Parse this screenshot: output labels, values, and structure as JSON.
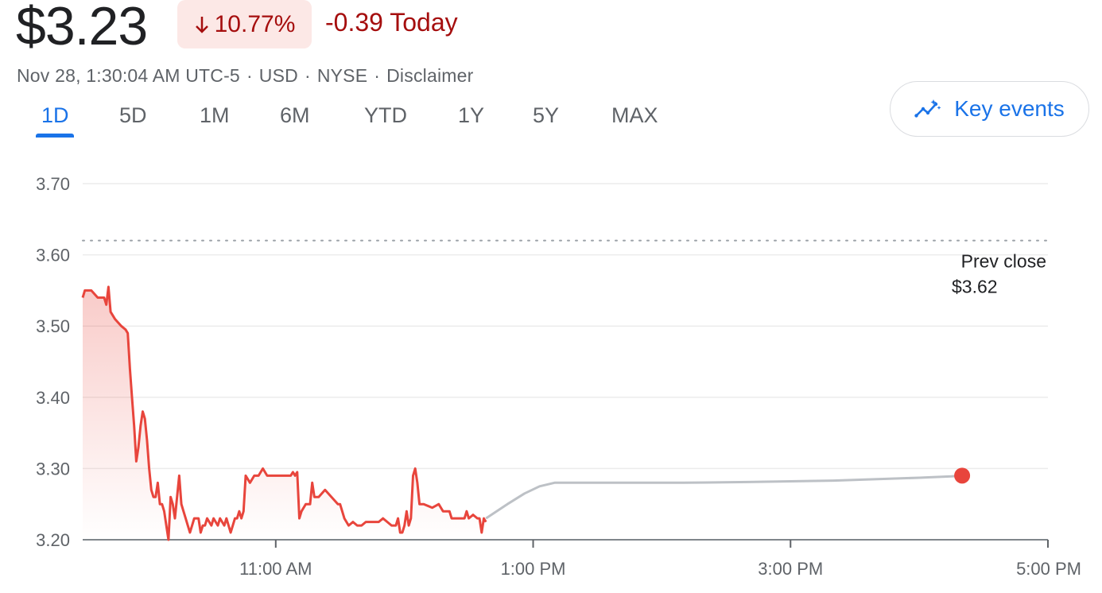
{
  "header": {
    "price": "$3.23",
    "change_percent": "10.77%",
    "change_today": "-0.39 Today",
    "meta": {
      "timestamp": "Nov 28, 1:30:04 AM UTC-5",
      "currency": "USD",
      "exchange": "NYSE",
      "disclaimer": "Disclaimer",
      "separator": "·"
    },
    "arrow_icon": "arrow-down-icon"
  },
  "tabs": [
    {
      "label": "1D",
      "active": true
    },
    {
      "label": "5D",
      "active": false
    },
    {
      "label": "1M",
      "active": false
    },
    {
      "label": "6M",
      "active": false
    },
    {
      "label": "YTD",
      "active": false
    },
    {
      "label": "1Y",
      "active": false
    },
    {
      "label": "5Y",
      "active": false
    },
    {
      "label": "MAX",
      "active": false
    }
  ],
  "key_events": {
    "label": "Key events",
    "icon": "insights-sparkle-icon"
  },
  "colors": {
    "down": "#a50e0e",
    "down_bg": "#fce8e6",
    "line": "#e8453c",
    "after_hours": "#bdc1c6",
    "accent": "#1a73e8",
    "grid": "#ececec",
    "prev_close_line": "#9aa0a6"
  },
  "chart_data": {
    "type": "line",
    "y_ticks": [
      "3.70",
      "3.60",
      "3.50",
      "3.40",
      "3.30",
      "3.20"
    ],
    "ylim": [
      3.2,
      3.7
    ],
    "x_ticks": [
      {
        "label": "11:00 AM",
        "minute": 660
      },
      {
        "label": "1:00 PM",
        "minute": 780
      },
      {
        "label": "3:00 PM",
        "minute": 900
      },
      {
        "label": "5:00 PM",
        "minute": 1020
      }
    ],
    "xlim_minutes": [
      570,
      1020
    ],
    "prev_close": {
      "label": "Prev close",
      "value_label": "$3.62",
      "value": 3.62
    },
    "series": [
      {
        "segment": "regular",
        "points": [
          [
            570,
            3.54
          ],
          [
            571,
            3.55
          ],
          [
            574,
            3.55
          ],
          [
            577,
            3.54
          ],
          [
            580,
            3.54
          ],
          [
            581,
            3.53
          ],
          [
            582,
            3.555
          ],
          [
            583,
            3.52
          ],
          [
            585,
            3.51
          ],
          [
            588,
            3.5
          ],
          [
            590,
            3.495
          ],
          [
            591,
            3.49
          ],
          [
            592,
            3.44
          ],
          [
            593,
            3.4
          ],
          [
            594,
            3.36
          ],
          [
            595,
            3.31
          ],
          [
            596,
            3.33
          ],
          [
            597,
            3.36
          ],
          [
            598,
            3.38
          ],
          [
            599,
            3.37
          ],
          [
            600,
            3.34
          ],
          [
            601,
            3.3
          ],
          [
            602,
            3.27
          ],
          [
            603,
            3.26
          ],
          [
            604,
            3.26
          ],
          [
            605,
            3.28
          ],
          [
            606,
            3.25
          ],
          [
            607,
            3.25
          ],
          [
            608,
            3.24
          ],
          [
            609,
            3.22
          ],
          [
            610,
            3.2
          ],
          [
            611,
            3.26
          ],
          [
            612,
            3.25
          ],
          [
            613,
            3.23
          ],
          [
            614,
            3.26
          ],
          [
            615,
            3.29
          ],
          [
            616,
            3.25
          ],
          [
            617,
            3.24
          ],
          [
            618,
            3.23
          ],
          [
            619,
            3.22
          ],
          [
            620,
            3.21
          ],
          [
            621,
            3.22
          ],
          [
            622,
            3.23
          ],
          [
            624,
            3.23
          ],
          [
            625,
            3.21
          ],
          [
            626,
            3.22
          ],
          [
            627,
            3.22
          ],
          [
            628,
            3.23
          ],
          [
            630,
            3.22
          ],
          [
            631,
            3.23
          ],
          [
            633,
            3.22
          ],
          [
            634,
            3.23
          ],
          [
            636,
            3.22
          ],
          [
            637,
            3.23
          ],
          [
            639,
            3.21
          ],
          [
            640,
            3.22
          ],
          [
            641,
            3.23
          ],
          [
            642,
            3.23
          ],
          [
            643,
            3.24
          ],
          [
            644,
            3.23
          ],
          [
            645,
            3.24
          ],
          [
            646,
            3.29
          ],
          [
            648,
            3.28
          ],
          [
            650,
            3.29
          ],
          [
            652,
            3.29
          ],
          [
            654,
            3.3
          ],
          [
            656,
            3.29
          ],
          [
            658,
            3.29
          ],
          [
            661,
            3.29
          ],
          [
            665,
            3.29
          ],
          [
            667,
            3.29
          ],
          [
            668,
            3.295
          ],
          [
            669,
            3.29
          ],
          [
            670,
            3.295
          ],
          [
            671,
            3.23
          ],
          [
            672,
            3.24
          ],
          [
            674,
            3.25
          ],
          [
            676,
            3.25
          ],
          [
            677,
            3.28
          ],
          [
            678,
            3.26
          ],
          [
            680,
            3.26
          ],
          [
            683,
            3.27
          ],
          [
            686,
            3.26
          ],
          [
            689,
            3.25
          ],
          [
            690,
            3.25
          ],
          [
            692,
            3.23
          ],
          [
            694,
            3.22
          ],
          [
            696,
            3.225
          ],
          [
            698,
            3.22
          ],
          [
            700,
            3.22
          ],
          [
            702,
            3.225
          ],
          [
            705,
            3.225
          ],
          [
            708,
            3.225
          ],
          [
            710,
            3.23
          ],
          [
            712,
            3.225
          ],
          [
            714,
            3.22
          ],
          [
            716,
            3.22
          ],
          [
            717,
            3.23
          ],
          [
            718,
            3.21
          ],
          [
            719,
            3.21
          ],
          [
            720,
            3.22
          ],
          [
            721,
            3.24
          ],
          [
            722,
            3.22
          ],
          [
            723,
            3.23
          ],
          [
            724,
            3.29
          ],
          [
            725,
            3.3
          ],
          [
            726,
            3.28
          ],
          [
            727,
            3.25
          ],
          [
            729,
            3.25
          ],
          [
            733,
            3.245
          ],
          [
            736,
            3.25
          ],
          [
            738,
            3.24
          ],
          [
            741,
            3.24
          ],
          [
            742,
            3.23
          ],
          [
            744,
            3.23
          ],
          [
            746,
            3.23
          ],
          [
            748,
            3.23
          ],
          [
            749,
            3.24
          ],
          [
            750,
            3.23
          ],
          [
            752,
            3.235
          ],
          [
            754,
            3.23
          ],
          [
            755,
            3.23
          ],
          [
            756,
            3.21
          ],
          [
            757,
            3.23
          ],
          [
            758,
            3.225
          ]
        ]
      },
      {
        "segment": "after_hours",
        "points": [
          [
            758,
            3.23
          ],
          [
            768,
            3.25
          ],
          [
            776,
            3.265
          ],
          [
            783,
            3.275
          ],
          [
            790,
            3.28
          ],
          [
            810,
            3.28
          ],
          [
            850,
            3.28
          ],
          [
            880,
            3.281
          ],
          [
            920,
            3.283
          ],
          [
            960,
            3.287
          ],
          [
            975,
            3.289
          ],
          [
            980,
            3.29
          ]
        ]
      }
    ],
    "last_point": {
      "minute": 980,
      "value": 3.29
    }
  }
}
